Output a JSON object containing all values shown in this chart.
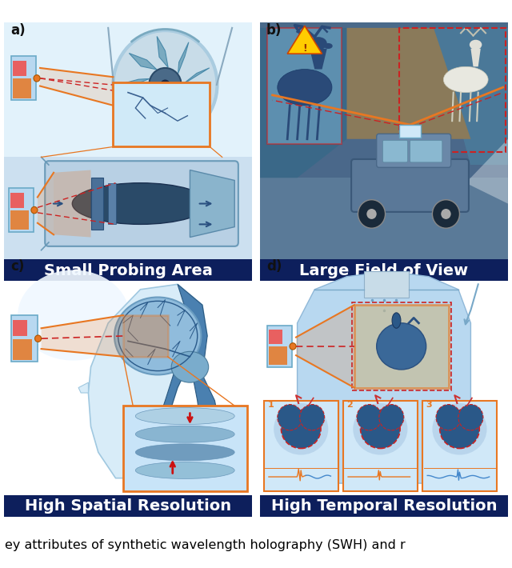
{
  "figure_size": [
    6.4,
    7.1
  ],
  "dpi": 100,
  "background_color": "#ffffff",
  "label_bg_color": "#0d1f5c",
  "label_text_color": "#ffffff",
  "label_font_size": 14,
  "panel_label_font_size": 12,
  "panel_labels": [
    "a)",
    "b)",
    "c)",
    "d)"
  ],
  "panel_titles": [
    "Small Probing Area",
    "Large Field of View",
    "High Spatial Resolution",
    "High Temporal Resolution"
  ],
  "orange_color": "#E87722",
  "orange_fill": "#E8A060",
  "red_dashed_color": "#CC2222",
  "blue_dark": "#1a3a6b",
  "blue_mid": "#4a7ab5",
  "blue_light": "#a8d0e8",
  "blue_lighter": "#cce4f4",
  "blue_panel": "#d8eef8",
  "blue_bg_b": "#5a7a9a",
  "caption_text": "ey attributes of synthetic wavelength holography (SWH) and r",
  "caption_font_size": 11.5,
  "panel_border_color": "#6aaccf"
}
